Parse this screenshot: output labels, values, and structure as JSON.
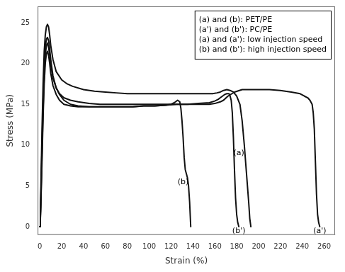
{
  "chart_data": {
    "type": "line",
    "xlabel": "Strain (%)",
    "ylabel": "Stress (MPa)",
    "xlim": [
      -2,
      270
    ],
    "ylim": [
      -1,
      27
    ],
    "xticks": [
      0,
      20,
      40,
      60,
      80,
      100,
      120,
      140,
      160,
      180,
      200,
      220,
      240,
      260
    ],
    "yticks": [
      0,
      5,
      10,
      15,
      20,
      25
    ],
    "grid": false,
    "color": "#111111",
    "series": [
      {
        "name": "(a)",
        "label_at": [
          182,
          9.0
        ],
        "x": [
          0,
          0.5,
          1,
          2,
          3,
          4,
          5,
          6,
          7,
          8,
          9,
          10,
          12,
          15,
          20,
          25,
          30,
          40,
          50,
          60,
          70,
          80,
          90,
          100,
          110,
          120,
          130,
          140,
          150,
          158,
          162,
          165,
          168,
          171,
          174,
          177,
          180,
          183,
          185,
          187,
          189,
          191,
          192,
          193
        ],
        "values": [
          0.0,
          1.5,
          5.0,
          12.0,
          17.5,
          21.5,
          23.5,
          24.5,
          24.8,
          24.5,
          23.5,
          22.2,
          20.5,
          19.0,
          18.0,
          17.5,
          17.2,
          16.8,
          16.6,
          16.5,
          16.4,
          16.3,
          16.3,
          16.3,
          16.3,
          16.3,
          16.3,
          16.3,
          16.3,
          16.3,
          16.4,
          16.5,
          16.7,
          16.8,
          16.7,
          16.5,
          16.0,
          15.0,
          13.0,
          10.0,
          6.5,
          3.0,
          1.0,
          0.0
        ]
      },
      {
        "name": "(b)",
        "label_at": [
          131,
          5.5
        ],
        "x": [
          0,
          0.5,
          1,
          2,
          3,
          4,
          5,
          6,
          7,
          8,
          9,
          10,
          12,
          15,
          18,
          22,
          28,
          35,
          45,
          55,
          65,
          75,
          85,
          95,
          105,
          115,
          120,
          123,
          126,
          128,
          129,
          130,
          131,
          132,
          133,
          134,
          135,
          136,
          137,
          138
        ],
        "values": [
          0.0,
          1.2,
          4.0,
          10.0,
          15.5,
          19.5,
          22.0,
          23.0,
          23.2,
          22.8,
          21.8,
          20.5,
          18.5,
          17.0,
          16.2,
          15.5,
          15.0,
          14.8,
          14.7,
          14.7,
          14.7,
          14.7,
          14.7,
          14.8,
          14.8,
          14.9,
          15.0,
          15.2,
          15.5,
          15.3,
          14.5,
          13.0,
          11.0,
          8.5,
          7.0,
          6.5,
          6.0,
          5.0,
          3.0,
          0.0
        ]
      },
      {
        "name": "(a')",
        "label_at": [
          256,
          -0.5
        ],
        "x": [
          0,
          0.5,
          1,
          2,
          3,
          4,
          5,
          6,
          7,
          8,
          9,
          10,
          12,
          15,
          18,
          22,
          28,
          35,
          45,
          55,
          65,
          75,
          85,
          95,
          105,
          115,
          125,
          135,
          145,
          155,
          160,
          165,
          168,
          172,
          178,
          185,
          192,
          200,
          210,
          220,
          230,
          238,
          242,
          245,
          247,
          249,
          250,
          251,
          252,
          253,
          254,
          255,
          256
        ],
        "values": [
          0.0,
          1.0,
          3.5,
          9.0,
          14.5,
          18.5,
          21.0,
          22.2,
          22.5,
          22.0,
          21.0,
          19.8,
          18.2,
          17.0,
          16.3,
          15.8,
          15.5,
          15.3,
          15.1,
          15.0,
          15.0,
          15.0,
          15.0,
          15.0,
          15.0,
          15.0,
          15.0,
          15.0,
          15.0,
          15.0,
          15.1,
          15.3,
          15.5,
          16.0,
          16.5,
          16.8,
          16.8,
          16.8,
          16.8,
          16.7,
          16.5,
          16.3,
          16.0,
          15.8,
          15.5,
          15.0,
          14.0,
          12.0,
          8.0,
          4.0,
          1.5,
          0.5,
          0.0
        ]
      },
      {
        "name": "(b')",
        "label_at": [
          182,
          -0.5
        ],
        "x": [
          0,
          0.5,
          1,
          2,
          3,
          4,
          5,
          6,
          7,
          8,
          9,
          10,
          12,
          15,
          18,
          22,
          28,
          35,
          45,
          55,
          65,
          75,
          85,
          95,
          105,
          115,
          125,
          135,
          145,
          155,
          160,
          163,
          165,
          167,
          169,
          171,
          173,
          174,
          175,
          176,
          177,
          178,
          179,
          180,
          181,
          182
        ],
        "values": [
          0.0,
          0.8,
          3.0,
          8.0,
          13.5,
          17.5,
          20.0,
          21.2,
          21.5,
          21.0,
          20.0,
          18.8,
          17.3,
          16.2,
          15.5,
          15.0,
          14.8,
          14.7,
          14.7,
          14.7,
          14.7,
          14.7,
          14.7,
          14.8,
          14.8,
          14.9,
          15.0,
          15.0,
          15.1,
          15.2,
          15.4,
          15.6,
          15.8,
          16.0,
          16.2,
          16.3,
          16.3,
          16.0,
          15.5,
          14.0,
          11.0,
          7.0,
          3.5,
          1.5,
          0.5,
          0.0
        ]
      }
    ],
    "annotations": [
      {
        "text": [
          "(a) and (b): PET/PE",
          "(a') and (b'): PC/PE",
          "(a) and (a'): low injection speed",
          "(b) and (b'): high injection speed"
        ]
      }
    ]
  }
}
